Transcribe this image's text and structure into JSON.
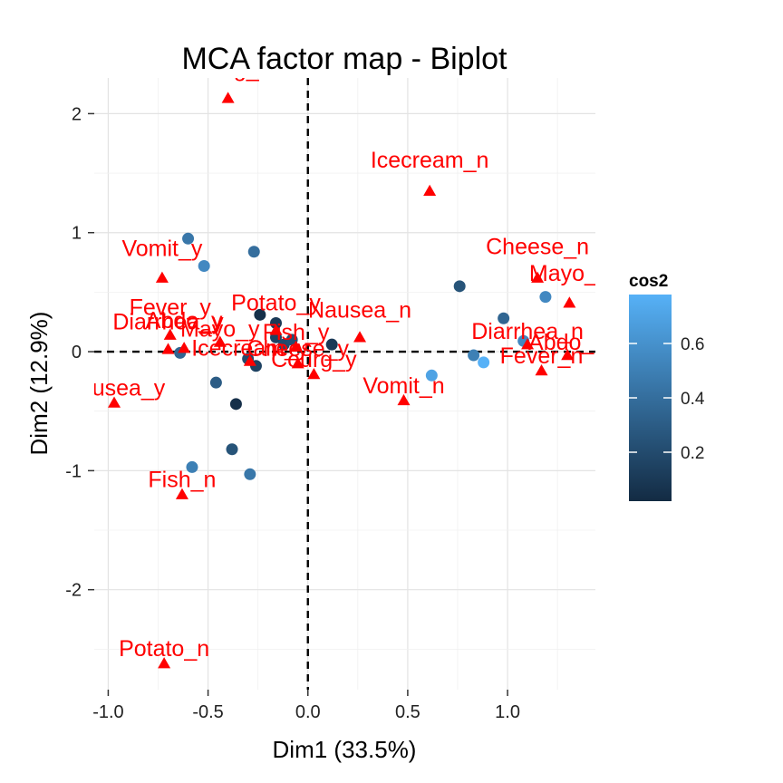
{
  "chart_data": {
    "type": "scatter",
    "title": "MCA factor map - Biplot",
    "xlabel": "Dim1 (33.5%)",
    "ylabel": "Dim2 (12.9%)",
    "xlim": [
      -1.07,
      1.44
    ],
    "ylim": [
      -2.84,
      2.3
    ],
    "xticks": [
      -1.0,
      -0.5,
      0.0,
      0.5,
      1.0
    ],
    "xtick_labels": [
      "-1.0",
      "-0.5",
      "0.0",
      "0.5",
      "1.0"
    ],
    "yticks": [
      -2,
      -1,
      0,
      1,
      2
    ],
    "ytick_labels": [
      "-2",
      "-1",
      "0",
      "1",
      "2"
    ],
    "grid": true,
    "reference_lines": {
      "x": 0,
      "y": 0,
      "style": "dashed"
    },
    "colors": {
      "variables": "#ff0000",
      "low": "#132b43",
      "high": "#56b1f7"
    },
    "legend": {
      "title": "cos2",
      "position": "right",
      "min": 0.02,
      "max": 0.78,
      "ticks": [
        0.2,
        0.4,
        0.6
      ],
      "tick_labels": [
        "0.2",
        "0.4",
        "0.6"
      ]
    },
    "individuals": [
      {
        "x": -0.6,
        "y": 0.95,
        "cos2": 0.45
      },
      {
        "x": -0.52,
        "y": 0.72,
        "cos2": 0.55
      },
      {
        "x": -0.27,
        "y": 0.84,
        "cos2": 0.4
      },
      {
        "x": -0.24,
        "y": 0.31,
        "cos2": 0.05
      },
      {
        "x": -0.16,
        "y": 0.24,
        "cos2": 0.1
      },
      {
        "x": -0.16,
        "y": 0.12,
        "cos2": 0.15
      },
      {
        "x": -0.12,
        "y": 0.06,
        "cos2": 0.2
      },
      {
        "x": -0.08,
        "y": 0.1,
        "cos2": 0.22
      },
      {
        "x": -0.64,
        "y": -0.01,
        "cos2": 0.35
      },
      {
        "x": -0.3,
        "y": -0.06,
        "cos2": 0.2
      },
      {
        "x": -0.26,
        "y": -0.12,
        "cos2": 0.15
      },
      {
        "x": 0.12,
        "y": 0.06,
        "cos2": 0.1
      },
      {
        "x": -0.46,
        "y": -0.26,
        "cos2": 0.3
      },
      {
        "x": -0.36,
        "y": -0.44,
        "cos2": 0.05
      },
      {
        "x": -0.38,
        "y": -0.82,
        "cos2": 0.25
      },
      {
        "x": -0.58,
        "y": -0.97,
        "cos2": 0.5
      },
      {
        "x": -0.29,
        "y": -1.03,
        "cos2": 0.45
      },
      {
        "x": 0.62,
        "y": -0.2,
        "cos2": 0.7
      },
      {
        "x": 0.76,
        "y": 0.55,
        "cos2": 0.25
      },
      {
        "x": 0.98,
        "y": 0.28,
        "cos2": 0.35
      },
      {
        "x": 0.83,
        "y": -0.03,
        "cos2": 0.5
      },
      {
        "x": 0.88,
        "y": -0.09,
        "cos2": 0.78
      },
      {
        "x": 1.08,
        "y": 0.09,
        "cos2": 0.55
      },
      {
        "x": 1.19,
        "y": 0.46,
        "cos2": 0.55
      }
    ],
    "variables": [
      {
        "label": "Courg_n",
        "x": -0.4,
        "y": 2.13,
        "label_dy": -24
      },
      {
        "label": "Icecream_n",
        "x": 0.61,
        "y": 1.35,
        "label_dy": -26
      },
      {
        "label": "Vomit_y",
        "x": -0.73,
        "y": 0.62,
        "label_dy": -24
      },
      {
        "label": "Cheese_n",
        "x": 1.15,
        "y": 0.62,
        "label_dy": -26
      },
      {
        "label": "Mayo_n",
        "x": 1.31,
        "y": 0.41,
        "label_dy": -24
      },
      {
        "label": "Potato_y",
        "x": -0.16,
        "y": 0.18,
        "label_dy": -22
      },
      {
        "label": "Nausea_n",
        "x": 0.26,
        "y": 0.12,
        "label_dy": -22
      },
      {
        "label": "Fever_y",
        "x": -0.69,
        "y": 0.14,
        "label_dy": -22
      },
      {
        "label": "Diarrhea_y",
        "x": -0.7,
        "y": 0.02,
        "label_dy": -22
      },
      {
        "label": "Abdo_y",
        "x": -0.62,
        "y": 0.03,
        "label_dy": -22
      },
      {
        "label": "Mayo_y",
        "x": -0.44,
        "y": 0.08,
        "label_dy": -6
      },
      {
        "label": "Icecream_y",
        "x": -0.29,
        "y": -0.08,
        "label_dy": -6
      },
      {
        "label": "Cheese_y",
        "x": -0.05,
        "y": -0.1,
        "label_dy": -8
      },
      {
        "label": "Fish_y",
        "x": -0.06,
        "y": 0.04,
        "label_dy": -8
      },
      {
        "label": "Courg_y",
        "x": 0.03,
        "y": -0.19,
        "label_dy": -8
      },
      {
        "label": "Vomit_n",
        "x": 0.48,
        "y": -0.41,
        "label_dy": -8
      },
      {
        "label": "Diarrhea_n",
        "x": 1.1,
        "y": 0.06,
        "label_dy": -6
      },
      {
        "label": "Abdo_n",
        "x": 1.3,
        "y": -0.03,
        "label_dy": -6
      },
      {
        "label": "Fever_n",
        "x": 1.17,
        "y": -0.16,
        "label_dy": -8
      },
      {
        "label": "Nausea_y",
        "x": -0.97,
        "y": -0.43,
        "label_dy": -8
      },
      {
        "label": "Fish_n",
        "x": -0.63,
        "y": -1.2,
        "label_dy": -8
      },
      {
        "label": "Potato_n",
        "x": -0.72,
        "y": -2.62,
        "label_dy": -8
      }
    ]
  }
}
